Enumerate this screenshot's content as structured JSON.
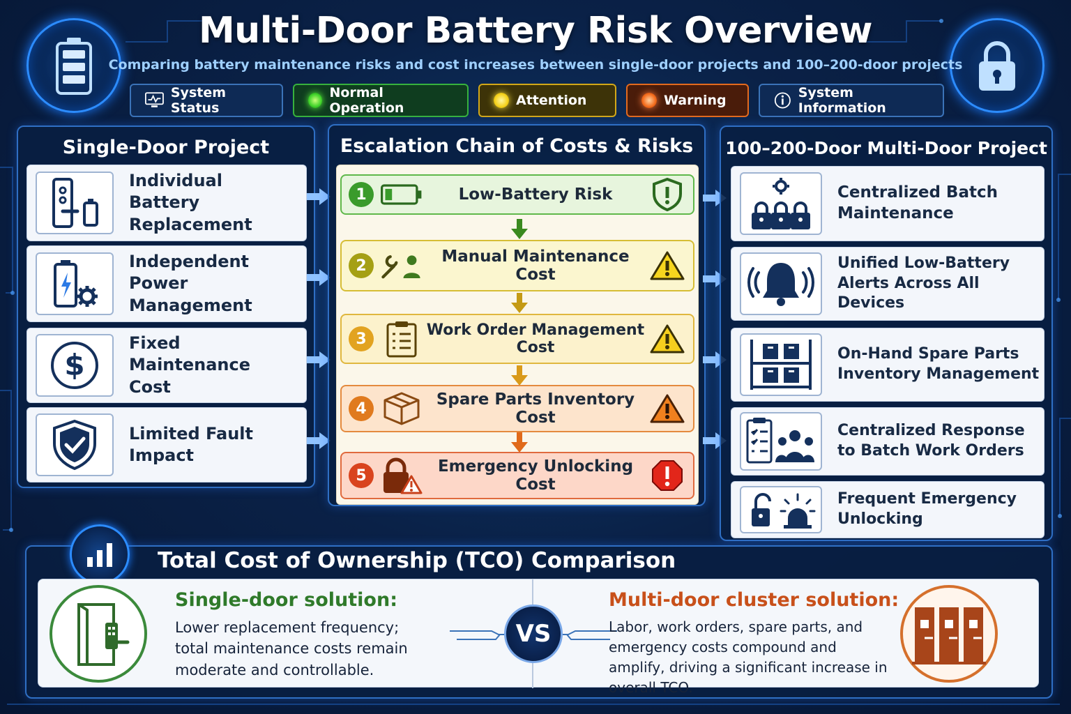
{
  "header": {
    "title": "Multi-Door Battery Risk Overview",
    "subtitle": "Comparing battery maintenance risks and cost increases between single-door projects and 100–200-door projects",
    "left_icon": "battery-icon",
    "right_icon": "padlock-icon"
  },
  "status_bar": [
    {
      "label": "System Status",
      "icon": "monitor-icon"
    },
    {
      "label": "Normal Operation",
      "icon": "green-dot",
      "color": "#3fd22a"
    },
    {
      "label": "Attention",
      "icon": "yellow-dot",
      "color": "#f5d11a"
    },
    {
      "label": "Warning",
      "icon": "orange-dot",
      "color": "#f36a1a"
    },
    {
      "label": "System Information",
      "icon": "info-icon"
    }
  ],
  "single_door": {
    "title": "Single-Door Project",
    "items": [
      {
        "label": "Individual Battery Replacement",
        "icon": "door-lock-battery-icon"
      },
      {
        "label": "Independent Power Management",
        "icon": "battery-gear-icon"
      },
      {
        "label": "Fixed Maintenance Cost",
        "icon": "dollar-icon"
      },
      {
        "label": "Limited Fault Impact",
        "icon": "shield-check-icon"
      }
    ]
  },
  "escalation": {
    "title": "Escalation Chain of Costs & Risks",
    "steps": [
      {
        "num": "1",
        "label": "Low-Battery Risk",
        "icon": "low-battery-icon",
        "risk_icon": "shield-alert-icon"
      },
      {
        "num": "2",
        "label": "Manual Maintenance Cost",
        "icon": "wrench-person-icon",
        "risk_icon": "warning-triangle-icon"
      },
      {
        "num": "3",
        "label": "Work Order Management Cost",
        "icon": "clipboard-icon",
        "risk_icon": "warning-triangle-icon"
      },
      {
        "num": "4",
        "label": "Spare Parts Inventory Cost",
        "icon": "box-icon",
        "risk_icon": "warning-triangle-icon"
      },
      {
        "num": "5",
        "label": "Emergency Unlocking Cost",
        "icon": "lock-warning-icon",
        "risk_icon": "stop-alert-icon"
      }
    ]
  },
  "multi_door": {
    "title": "100–200-Door Multi-Door Project",
    "items": [
      {
        "label": "Centralized Batch Maintenance",
        "icon": "locks-gear-icon"
      },
      {
        "label": "Unified Low-Battery Alerts Across All Devices",
        "icon": "bell-icon"
      },
      {
        "label": "On-Hand Spare Parts Inventory Management",
        "icon": "shelf-icon"
      },
      {
        "label": "Centralized Response to Batch Work Orders",
        "icon": "checklist-team-icon"
      },
      {
        "label": "Frequent Emergency Unlocking",
        "icon": "unlock-alarm-icon"
      }
    ]
  },
  "tco": {
    "title": "Total Cost of Ownership (TCO) Comparison",
    "badge_icon": "bar-chart-icon",
    "vs": "VS",
    "single": {
      "heading": "Single-door solution:",
      "text": "Lower replacement frequency; total maintenance costs remain moderate and controllable.",
      "color": "#2f7a2a",
      "icon": "single-door-icon"
    },
    "multi": {
      "heading": "Multi-door cluster solution:",
      "text": "Labor, work orders, spare parts, and emergency costs compound and amplify, driving a significant increase in overall TCO.",
      "color": "#c8501a",
      "icon": "multi-door-icon"
    }
  }
}
